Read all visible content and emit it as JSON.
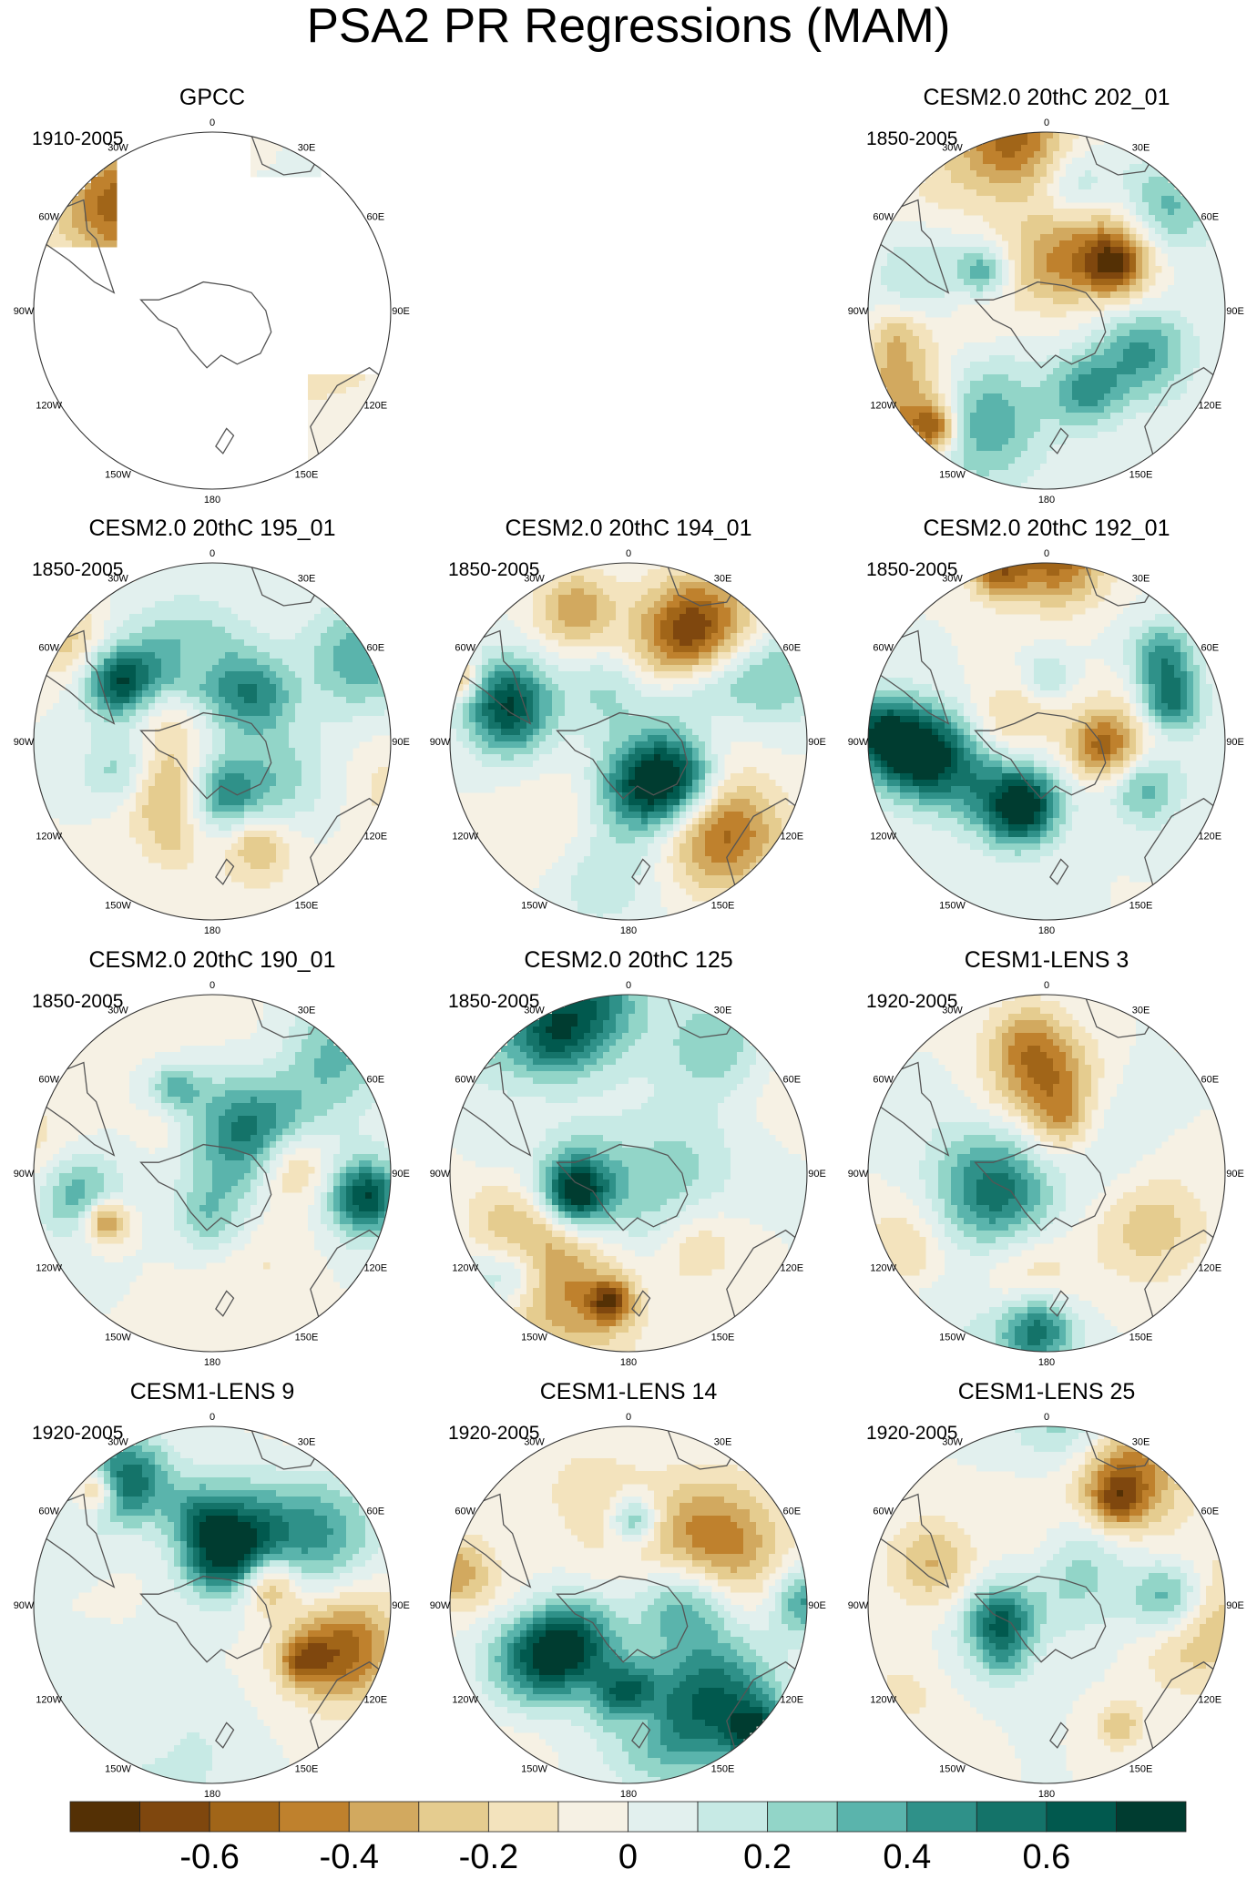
{
  "chart_data": {
    "type": "heatmap",
    "projection": "south-polar-stereographic",
    "title": "PSA2 PR Regressions (MAM)",
    "longitude_labels": [
      "0",
      "30E",
      "60E",
      "90E",
      "120E",
      "150E",
      "180",
      "150W",
      "120W",
      "90W",
      "60W",
      "30W"
    ],
    "panels": [
      {
        "title": "GPCC",
        "period": "1910-2005",
        "grid": [
          0,
          0
        ],
        "land_only": true,
        "seed": 3
      },
      {
        "title": "CESM2.0 20thC 202_01",
        "period": "1850-2005",
        "grid": [
          0,
          2
        ],
        "land_only": false,
        "seed": 11
      },
      {
        "title": "CESM2.0 20thC 195_01",
        "period": "1850-2005",
        "grid": [
          1,
          0
        ],
        "land_only": false,
        "seed": 17
      },
      {
        "title": "CESM2.0 20thC 194_01",
        "period": "1850-2005",
        "grid": [
          1,
          1
        ],
        "land_only": false,
        "seed": 23
      },
      {
        "title": "CESM2.0 20thC 192_01",
        "period": "1850-2005",
        "grid": [
          1,
          2
        ],
        "land_only": false,
        "seed": 29
      },
      {
        "title": "CESM2.0 20thC 190_01",
        "period": "1850-2005",
        "grid": [
          2,
          0
        ],
        "land_only": false,
        "seed": 31
      },
      {
        "title": "CESM2.0 20thC 125",
        "period": "1850-2005",
        "grid": [
          2,
          1
        ],
        "land_only": false,
        "seed": 37
      },
      {
        "title": "CESM1-LENS 3",
        "period": "1920-2005",
        "grid": [
          2,
          2
        ],
        "land_only": false,
        "seed": 41
      },
      {
        "title": "CESM1-LENS 9",
        "period": "1920-2005",
        "grid": [
          3,
          0
        ],
        "land_only": false,
        "seed": 43
      },
      {
        "title": "CESM1-LENS 14",
        "period": "1920-2005",
        "grid": [
          3,
          1
        ],
        "land_only": false,
        "seed": 47
      },
      {
        "title": "CESM1-LENS 25",
        "period": "1920-2005",
        "grid": [
          3,
          2
        ],
        "land_only": false,
        "seed": 53
      }
    ],
    "colorbar": {
      "levels": [
        -0.8,
        -0.7,
        -0.6,
        -0.5,
        -0.4,
        -0.3,
        -0.2,
        -0.1,
        0,
        0.1,
        0.2,
        0.3,
        0.4,
        0.5,
        0.6,
        0.7,
        0.8
      ],
      "colors": [
        "#543005",
        "#7f470e",
        "#a16518",
        "#bf812d",
        "#d2a95f",
        "#e5cc8f",
        "#f3e3bd",
        "#f6f1e4",
        "#e2f0ee",
        "#c7eae5",
        "#92d5c8",
        "#5ab4ac",
        "#2f9189",
        "#147369",
        "#01594e",
        "#003c30"
      ],
      "tick_labels": [
        "-0.6",
        "-0.4",
        "-0.2",
        "0",
        "0.2",
        "0.4",
        "0.6"
      ],
      "tick_values": [
        -0.6,
        -0.4,
        -0.2,
        0,
        0.2,
        0.4,
        0.6
      ]
    }
  }
}
